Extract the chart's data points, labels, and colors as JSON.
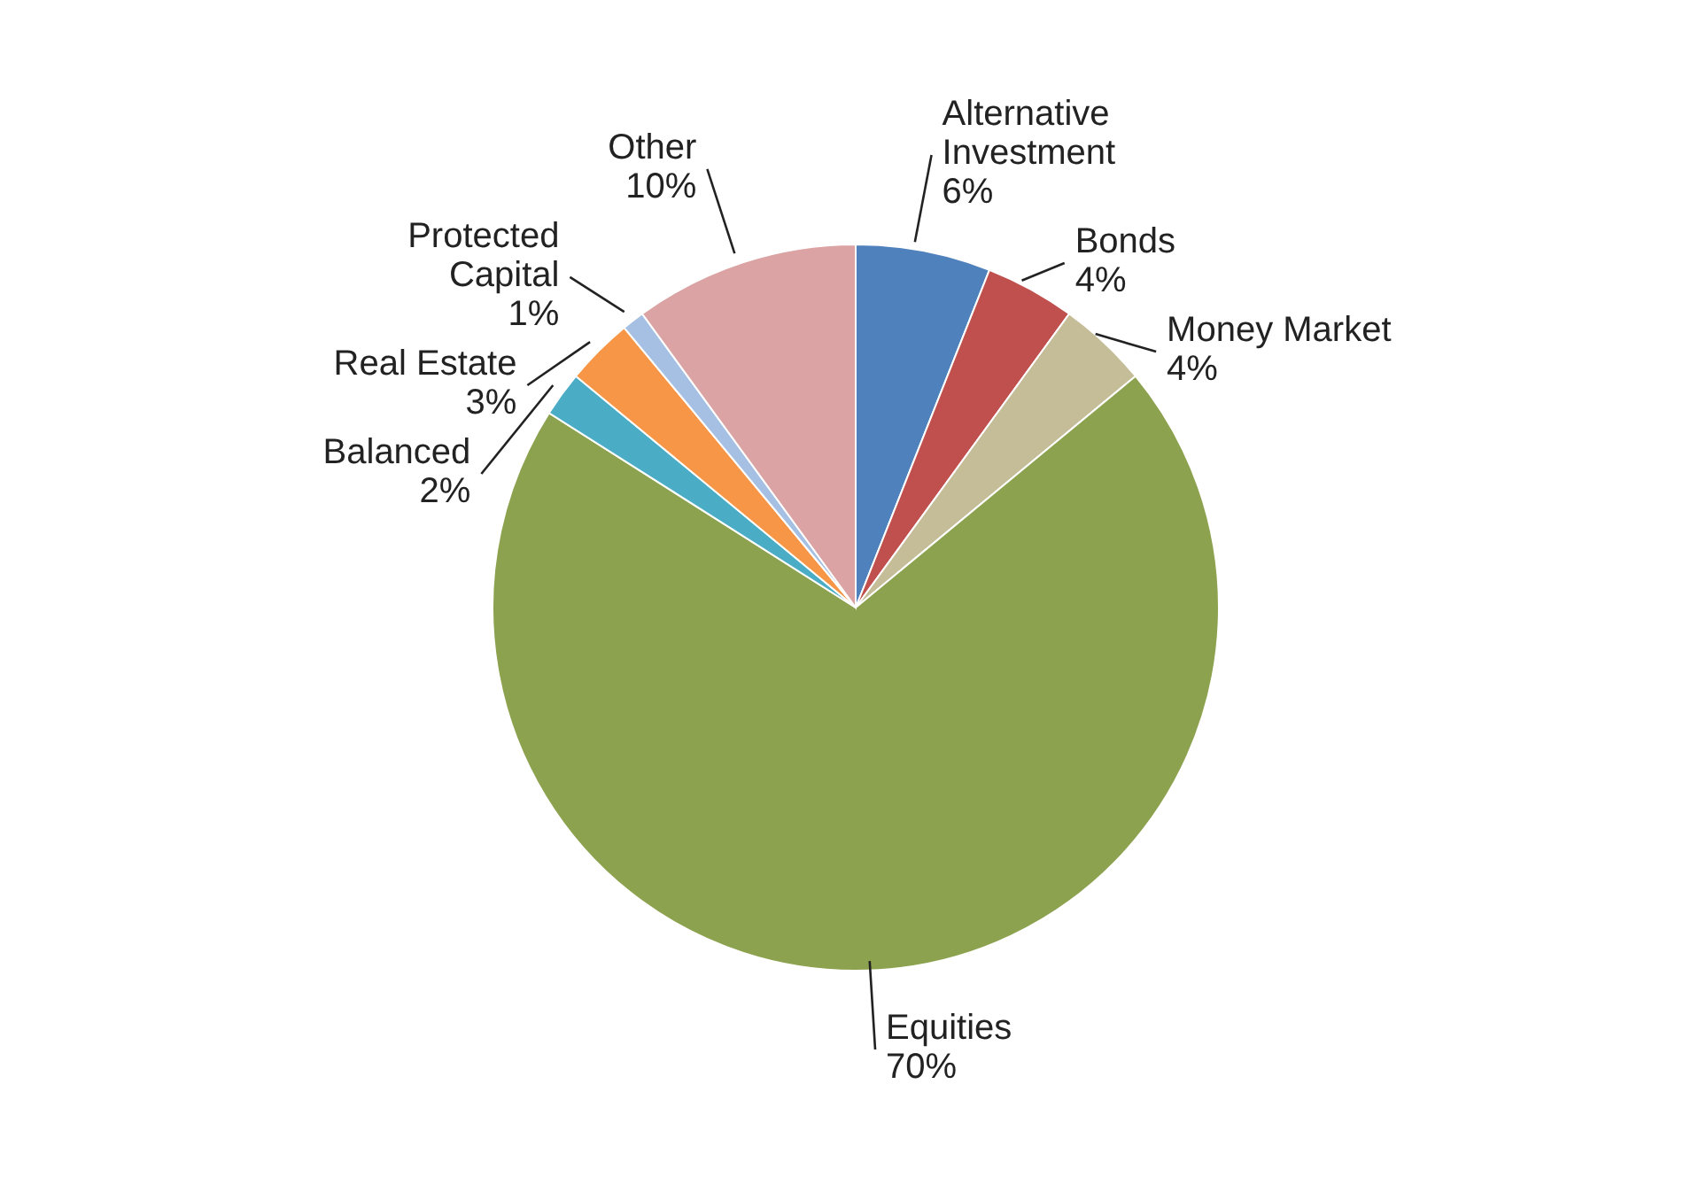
{
  "chart_data": {
    "type": "pie",
    "categories": [
      "Alternative Investment",
      "Bonds",
      "Money Market",
      "Equities",
      "Balanced",
      "Real Estate",
      "Protected Capital",
      "Other"
    ],
    "values": [
      6,
      4,
      4,
      70,
      2,
      3,
      1,
      10
    ],
    "colors": [
      "#4f81bd",
      "#c0504d",
      "#c4bd97",
      "#8da24f",
      "#4bacc6",
      "#f79646",
      "#a6c0e4",
      "#dba3a3"
    ],
    "value_labels": [
      "6%",
      "4%",
      "4%",
      "70%",
      "2%",
      "3%",
      "1%",
      "10%"
    ],
    "legend": false
  }
}
